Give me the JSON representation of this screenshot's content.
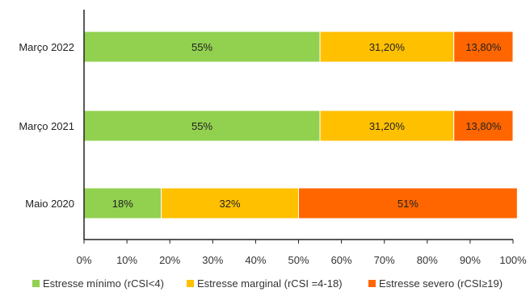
{
  "chart_data": {
    "type": "bar",
    "orientation": "horizontal",
    "stacked": true,
    "categories": [
      "Março 2022",
      "Março 2021",
      "Maio 2020"
    ],
    "series": [
      {
        "name": "Estresse mínimo (rCSI<4)",
        "color": "#92D050",
        "values": [
          55,
          55,
          18
        ],
        "labels": [
          "55%",
          "55%",
          "18%"
        ]
      },
      {
        "name": "Estresse marginal (rCSI =4-18)",
        "color": "#FFC000",
        "values": [
          31.2,
          31.2,
          32
        ],
        "labels": [
          "31,20%",
          "31,20%",
          "32%"
        ]
      },
      {
        "name": "Estresse severo (rCSI≥19)",
        "color": "#FF6600",
        "values": [
          13.8,
          13.8,
          51
        ],
        "labels": [
          "13,80%",
          "13,80%",
          "51%"
        ]
      }
    ],
    "x_ticks": [
      "0%",
      "10%",
      "20%",
      "30%",
      "40%",
      "50%",
      "60%",
      "70%",
      "80%",
      "90%",
      "100%"
    ],
    "xlim": [
      0,
      100
    ],
    "title": "",
    "xlabel": "",
    "ylabel": "",
    "grid": false,
    "legend_position": "bottom"
  }
}
